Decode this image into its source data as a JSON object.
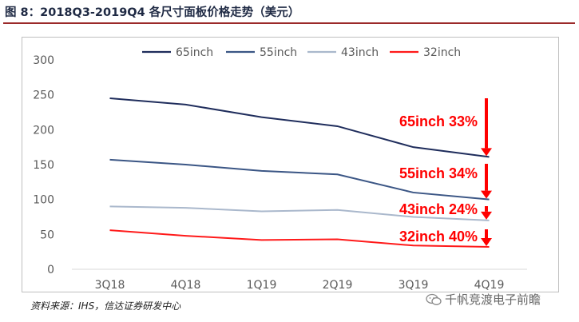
{
  "title": "图 8：2018Q3-2019Q4 各尺寸面板价格走势（美元）",
  "source": "资料来源：IHS，信达证券研发中心",
  "watermark": {
    "text": "千帆竞渡电子前瞻",
    "icon": "wechat-icon"
  },
  "chart_data": {
    "type": "line",
    "categories": [
      "3Q18",
      "4Q18",
      "1Q19",
      "2Q19",
      "3Q19",
      "4Q19"
    ],
    "ylim": [
      0,
      300
    ],
    "yticks": [
      0,
      50,
      100,
      150,
      200,
      250,
      300
    ],
    "grid": false,
    "legend_position": "top",
    "series": [
      {
        "name": "65inch",
        "color": "#1f2d5c",
        "values": [
          245,
          236,
          218,
          205,
          175,
          161
        ]
      },
      {
        "name": "55inch",
        "color": "#3b5685",
        "values": [
          157,
          150,
          141,
          136,
          110,
          100
        ]
      },
      {
        "name": "43inch",
        "color": "#aab8cc",
        "values": [
          90,
          88,
          83,
          85,
          75,
          70
        ]
      },
      {
        "name": "32inch",
        "color": "#ff1a1a",
        "values": [
          56,
          48,
          42,
          43,
          34,
          32
        ]
      }
    ],
    "annotations": [
      {
        "text": "65inch 33%",
        "series": "65inch"
      },
      {
        "text": "55inch 34%",
        "series": "55inch"
      },
      {
        "text": "43inch 24%",
        "series": "43inch"
      },
      {
        "text": "32inch 40%",
        "series": "32inch"
      }
    ],
    "annotation_color": "#ff0000"
  }
}
